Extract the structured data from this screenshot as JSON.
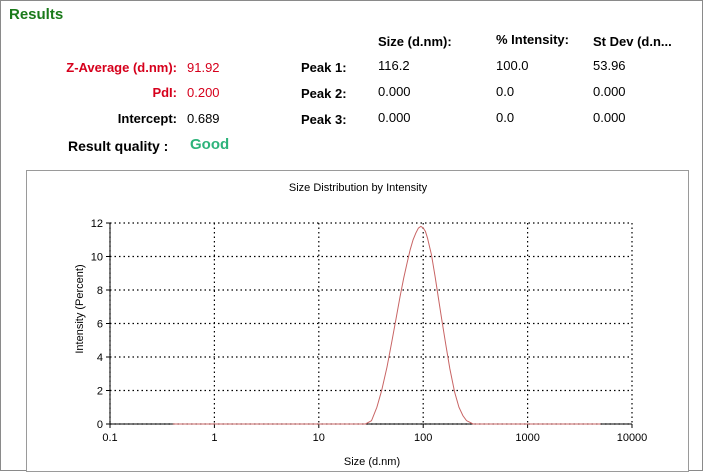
{
  "header": {
    "title": "Results"
  },
  "metrics": {
    "z_average": {
      "label": "Z-Average (d.nm):",
      "value": "91.92"
    },
    "pdi": {
      "label": "PdI:",
      "value": "0.200"
    },
    "intercept": {
      "label": "Intercept:",
      "value": "0.689"
    },
    "result_quality": {
      "label": "Result quality :",
      "value": "Good"
    }
  },
  "peaks_table": {
    "columns": [
      "Size (d.nm):",
      "% Intensity:",
      "St Dev (d.n..."
    ],
    "rows": [
      {
        "label": "Peak 1:",
        "size": "116.2",
        "intensity": "100.0",
        "stdev": "53.96"
      },
      {
        "label": "Peak 2:",
        "size": "0.000",
        "intensity": "0.0",
        "stdev": "0.000"
      },
      {
        "label": "Peak 3:",
        "size": "0.000",
        "intensity": "0.0",
        "stdev": "0.000"
      }
    ]
  },
  "colors": {
    "title_green": "#1a7a1a",
    "highlight_red": "#d6001c",
    "good_green": "#2db37a",
    "curve": "#c86464",
    "grid": "#000000"
  },
  "chart_data": {
    "type": "line",
    "title": "Size Distribution by Intensity",
    "xlabel": "Size (d.nm)",
    "ylabel": "Intensity (Percent)",
    "xscale": "log",
    "xlim": [
      0.1,
      10000
    ],
    "ylim": [
      0,
      12
    ],
    "xticks": [
      0.1,
      1,
      10,
      100,
      1000,
      10000
    ],
    "xtick_labels": [
      "0.1",
      "1",
      "10",
      "100",
      "1000",
      "10000"
    ],
    "yticks": [
      0,
      2,
      4,
      6,
      8,
      10,
      12
    ],
    "ytick_labels": [
      "0",
      "2",
      "4",
      "6",
      "8",
      "10",
      "12"
    ],
    "grid": true,
    "series": [
      {
        "x": [
          0.4,
          1,
          5,
          20,
          28,
          32,
          36,
          40,
          45,
          50,
          55,
          60,
          65,
          70,
          75,
          80,
          85,
          90,
          95,
          100,
          105,
          110,
          120,
          130,
          140,
          150,
          165,
          180,
          200,
          220,
          240,
          260,
          280,
          300,
          320,
          350,
          400,
          500,
          1000,
          5000
        ],
        "y": [
          0,
          0,
          0,
          0,
          0,
          0.2,
          1.0,
          2.0,
          3.4,
          4.9,
          6.3,
          7.6,
          8.7,
          9.6,
          10.4,
          11.0,
          11.4,
          11.7,
          11.8,
          11.7,
          11.5,
          11.1,
          10.1,
          8.8,
          7.5,
          6.3,
          4.7,
          3.3,
          1.9,
          1.0,
          0.5,
          0.2,
          0.1,
          0,
          0,
          0,
          0,
          0,
          0,
          0
        ]
      }
    ]
  }
}
